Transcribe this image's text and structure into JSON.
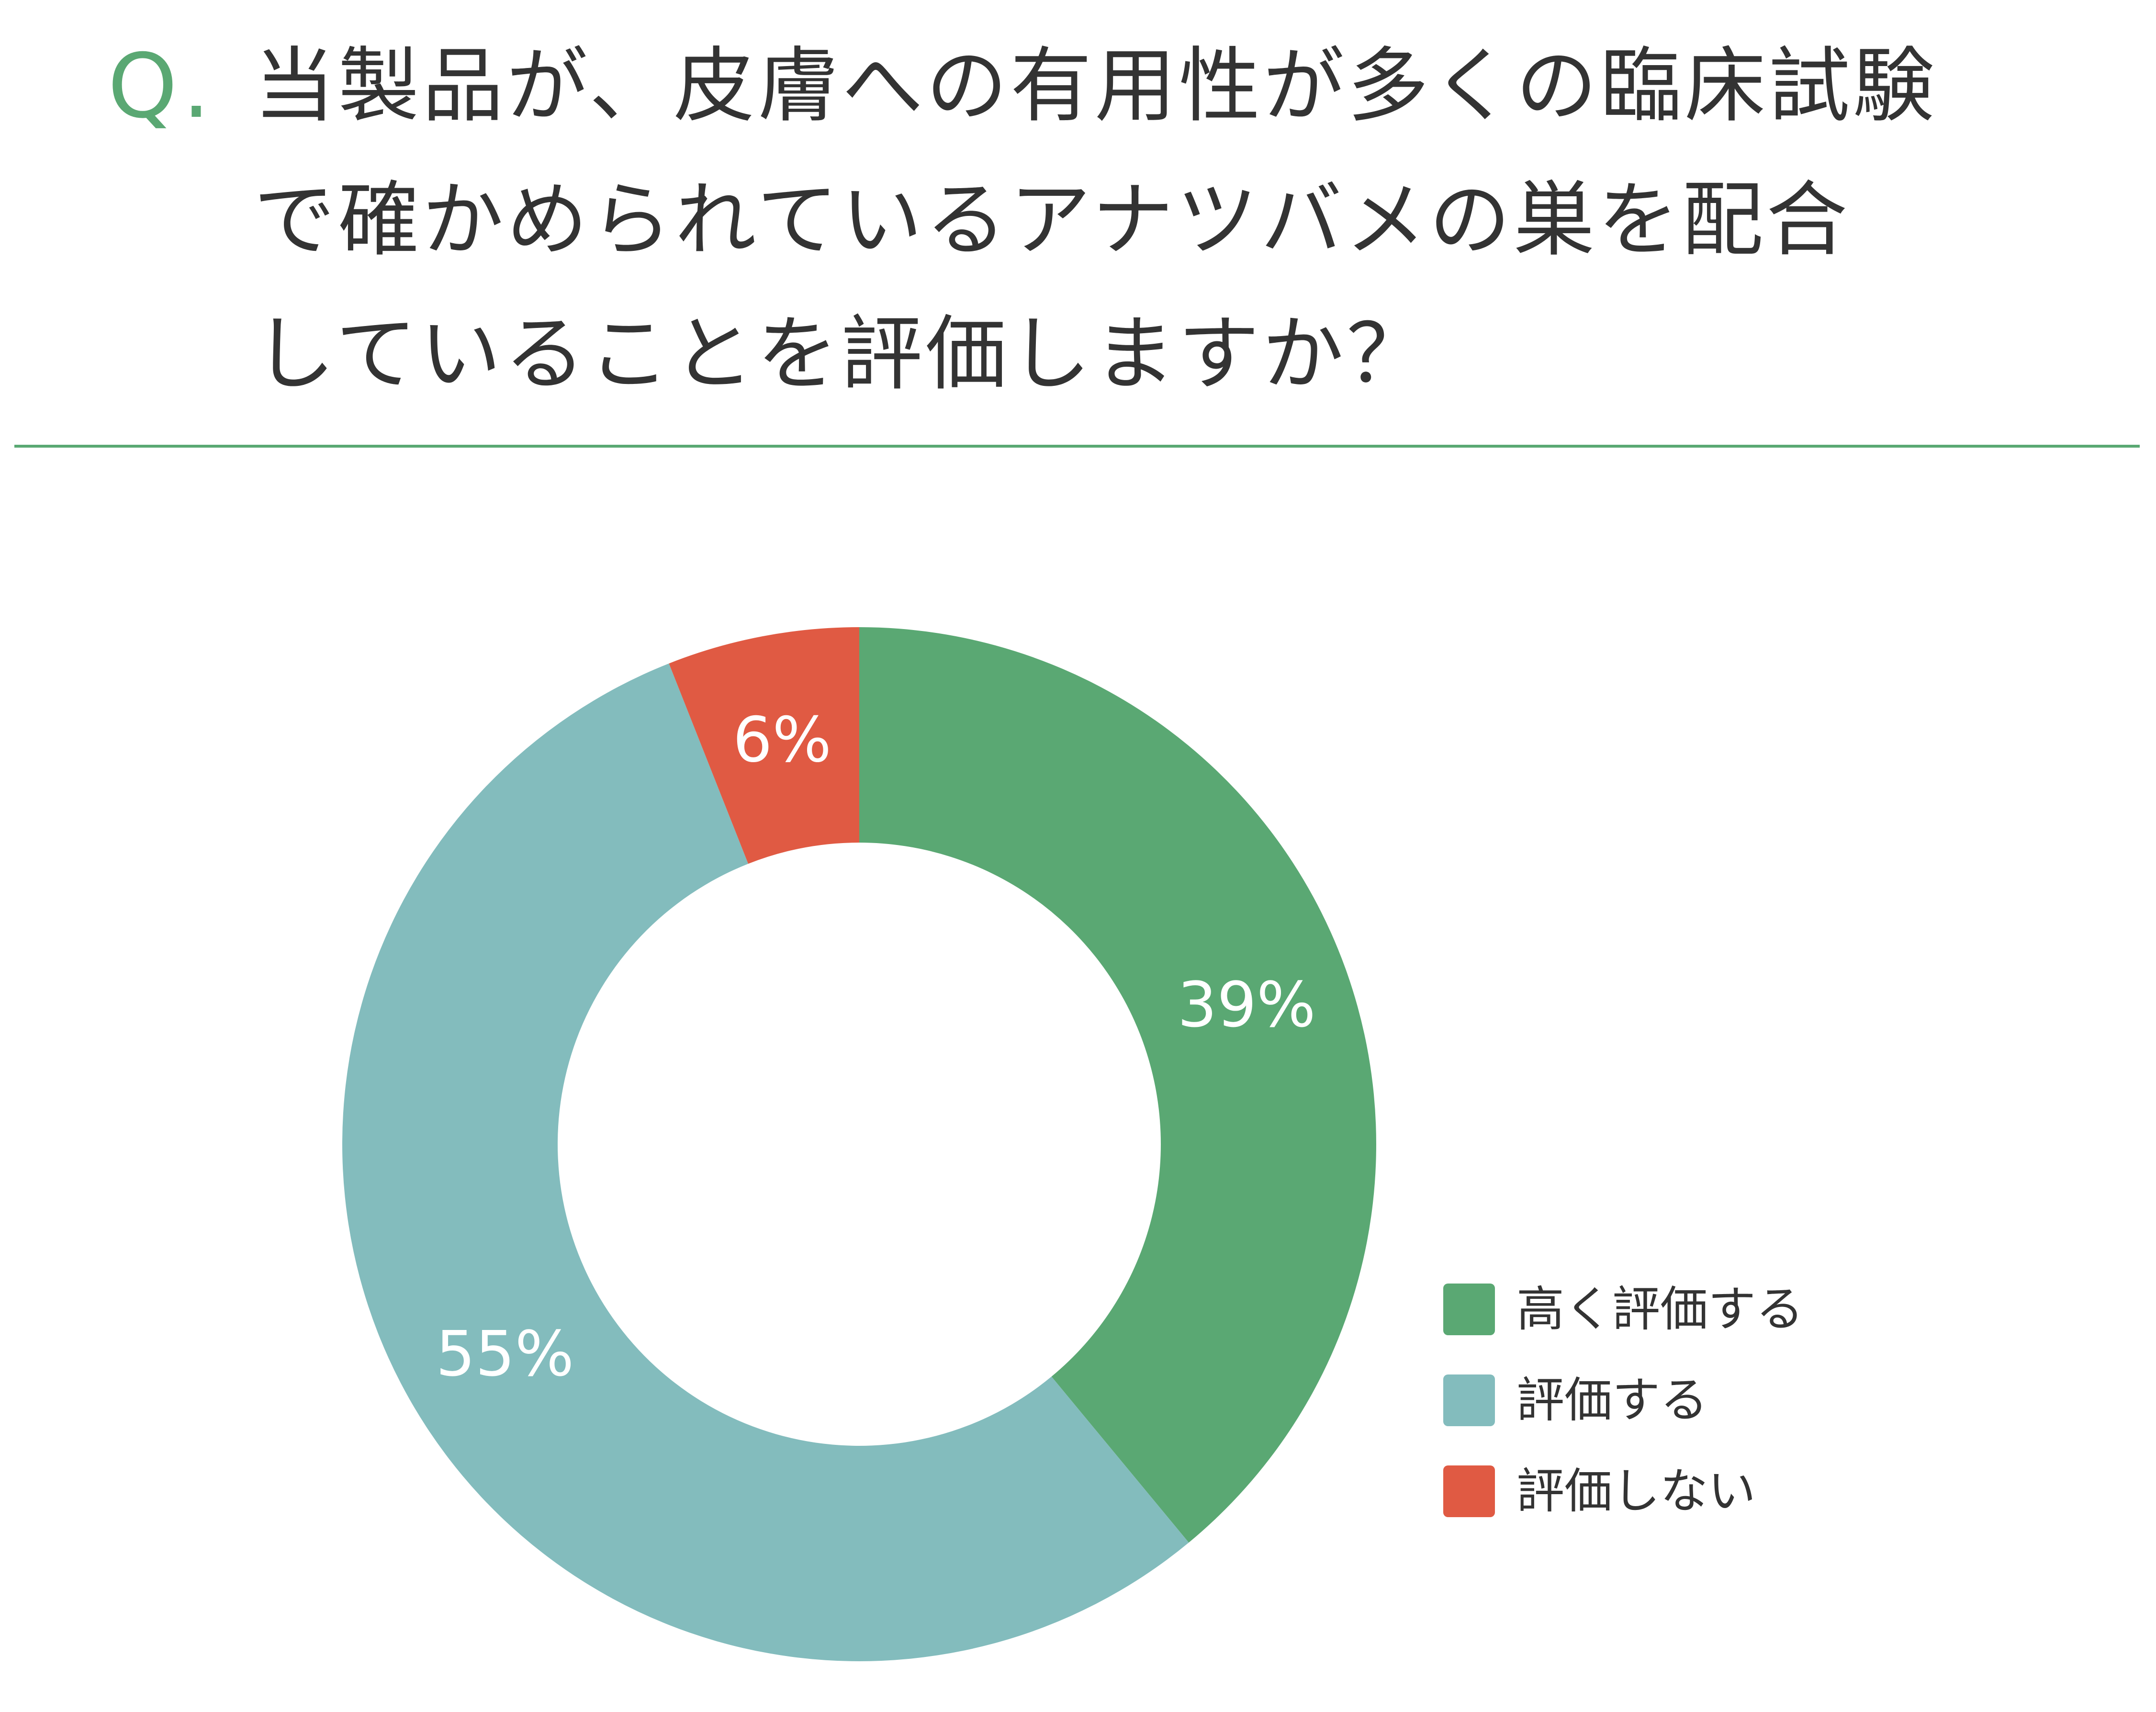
{
  "header": {
    "q_mark": "Q.",
    "question_lines": [
      "当製品が、皮膚への有用性が多くの臨床試験",
      "で確かめられているアナツバメの巣を配合",
      "していることを評価しますか？"
    ]
  },
  "colors": {
    "accent": "#5aa873",
    "text": "#333333"
  },
  "chart_data": {
    "type": "pie",
    "donut": true,
    "start_angle": "12 o'clock",
    "direction": "clockwise",
    "legend_position": "bottom-right",
    "series": [
      {
        "name": "高く評価する",
        "value": 39,
        "label": "39%",
        "color": "#5aa873"
      },
      {
        "name": "評価する",
        "value": 55,
        "label": "55%",
        "color": "#83bcbd"
      },
      {
        "name": "評価しない",
        "value": 6,
        "label": "6%",
        "color": "#e05a43"
      }
    ]
  }
}
